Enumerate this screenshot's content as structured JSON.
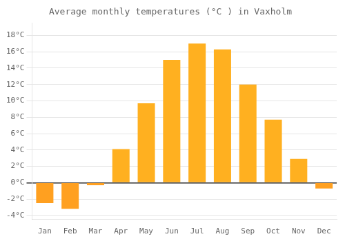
{
  "chart_data": {
    "type": "bar",
    "title": "Average monthly temperatures (°C ) in Vaxholm",
    "categories": [
      "Jan",
      "Feb",
      "Mar",
      "Apr",
      "May",
      "Jun",
      "Jul",
      "Aug",
      "Sep",
      "Oct",
      "Nov",
      "Dec"
    ],
    "values": [
      -2.5,
      -3.2,
      -0.3,
      4.1,
      9.7,
      15.0,
      17.0,
      16.3,
      12.0,
      7.7,
      2.9,
      -0.7
    ],
    "colors": [
      "#FFA020",
      "#FFA020",
      "#FFA020",
      "#FFB020",
      "#FFB020",
      "#FFB020",
      "#FFB020",
      "#FFB020",
      "#FFB020",
      "#FFB020",
      "#FFB020",
      "#FFA020"
    ],
    "ylim": [
      -4.5,
      19.5
    ],
    "yticks": [
      {
        "value": -4,
        "label": "-4°C"
      },
      {
        "value": -2,
        "label": "-2°C"
      },
      {
        "value": 0,
        "label": "0°C"
      },
      {
        "value": 2,
        "label": "2°C"
      },
      {
        "value": 4,
        "label": "4°C"
      },
      {
        "value": 6,
        "label": "6°C"
      },
      {
        "value": 8,
        "label": "8°C"
      },
      {
        "value": 10,
        "label": "10°C"
      },
      {
        "value": 12,
        "label": "12°C"
      },
      {
        "value": 14,
        "label": "14°C"
      },
      {
        "value": 16,
        "label": "16°C"
      },
      {
        "value": 18,
        "label": "18°C"
      }
    ],
    "grid": true
  }
}
